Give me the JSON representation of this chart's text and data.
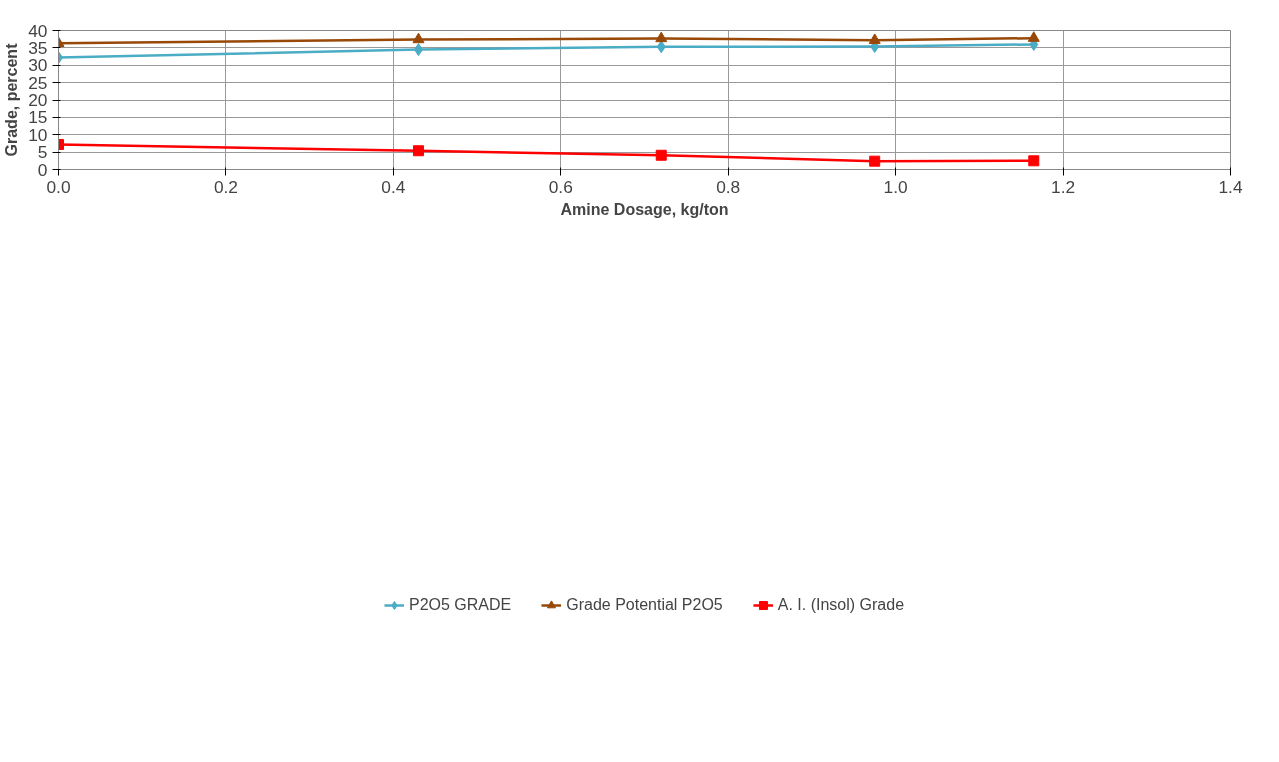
{
  "chart_data": {
    "type": "line",
    "xlabel": "Amine Dosage, kg/ton",
    "ylabel": "Grade, percent",
    "x": [
      0,
      0.43,
      0.72,
      0.975,
      1.165
    ],
    "series": [
      {
        "name": "P2O5 GRADE",
        "color": "#4bacc6",
        "marker": "diamond",
        "values": [
          32.2,
          34.5,
          35.3,
          35.4,
          36.0
        ]
      },
      {
        "name": "Grade Potential P2O5",
        "color": "#984807",
        "marker": "triangle",
        "values": [
          36.3,
          37.4,
          37.7,
          37.2,
          37.8
        ]
      },
      {
        "name": "A. I. (Insol) Grade",
        "color": "#ff0000",
        "marker": "square",
        "values": [
          7.2,
          5.4,
          4.1,
          2.4,
          2.5
        ]
      }
    ],
    "xlim": [
      0,
      1.4
    ],
    "ylim": [
      0,
      40
    ],
    "xticks": [
      {
        "value": 0,
        "label": "0.0"
      },
      {
        "value": 0.2,
        "label": "0.2"
      },
      {
        "value": 0.4,
        "label": "0.4"
      },
      {
        "value": 0.6,
        "label": "0.6"
      },
      {
        "value": 0.8,
        "label": "0.8"
      },
      {
        "value": 1.0,
        "label": "1.0"
      },
      {
        "value": 1.2,
        "label": "1.2"
      },
      {
        "value": 1.4,
        "label": "1.4"
      }
    ],
    "yticks": [
      0,
      5,
      10,
      15,
      20,
      25,
      30,
      35,
      40
    ],
    "grid": true,
    "legend": "bottom",
    "line_style": "solid"
  }
}
